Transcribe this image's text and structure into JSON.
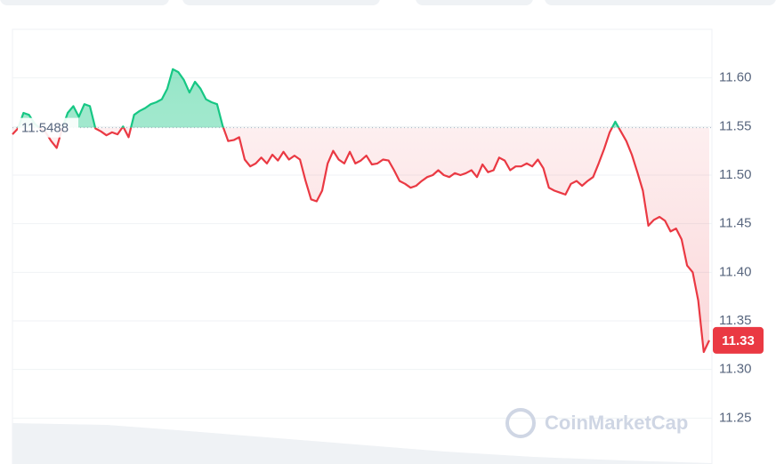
{
  "chart_data": {
    "type": "line",
    "values": [
      11.542,
      11.548,
      11.564,
      11.562,
      11.553,
      11.548,
      11.544,
      11.535,
      11.528,
      11.548,
      11.564,
      11.571,
      11.56,
      11.573,
      11.571,
      11.548,
      11.545,
      11.541,
      11.544,
      11.542,
      11.55,
      11.539,
      11.562,
      11.566,
      11.569,
      11.573,
      11.575,
      11.578,
      11.589,
      11.609,
      11.606,
      11.598,
      11.585,
      11.596,
      11.589,
      11.578,
      11.575,
      11.573,
      11.551,
      11.535,
      11.536,
      11.539,
      11.516,
      11.509,
      11.512,
      11.518,
      11.512,
      11.521,
      11.515,
      11.524,
      11.516,
      11.52,
      11.516,
      11.494,
      11.475,
      11.473,
      11.484,
      11.512,
      11.525,
      11.516,
      11.512,
      11.524,
      11.512,
      11.515,
      11.52,
      11.511,
      11.512,
      11.516,
      11.515,
      11.505,
      11.494,
      11.491,
      11.487,
      11.489,
      11.494,
      11.498,
      11.5,
      11.505,
      11.5,
      11.498,
      11.502,
      11.5,
      11.502,
      11.505,
      11.498,
      11.511,
      11.503,
      11.505,
      11.518,
      11.515,
      11.505,
      11.509,
      11.509,
      11.512,
      11.509,
      11.516,
      11.507,
      11.487,
      11.484,
      11.482,
      11.48,
      11.491,
      11.494,
      11.489,
      11.494,
      11.498,
      11.512,
      11.527,
      11.544,
      11.555,
      11.545,
      11.535,
      11.521,
      11.503,
      11.484,
      11.448,
      11.454,
      11.457,
      11.453,
      11.442,
      11.445,
      11.434,
      11.407,
      11.4,
      11.371,
      11.318,
      11.33
    ],
    "baseline": {
      "value": 11.5488,
      "label": "11.5488"
    },
    "current_price": {
      "value": 11.33,
      "label": "11.33"
    },
    "up_color": "#16c784",
    "down_color": "#ea3943",
    "ylim": [
      11.2,
      11.65
    ],
    "yticks": [
      {
        "value": 11.6,
        "label": "11.60"
      },
      11.55,
      {
        "value": 11.5,
        "label": "11.50"
      },
      11.45,
      {
        "value": 11.4,
        "label": "11.40"
      },
      11.35,
      {
        "value": 11.3,
        "label": "11.30"
      },
      11.25
    ],
    "grid": true,
    "watermark": "CoinMarketCap"
  }
}
